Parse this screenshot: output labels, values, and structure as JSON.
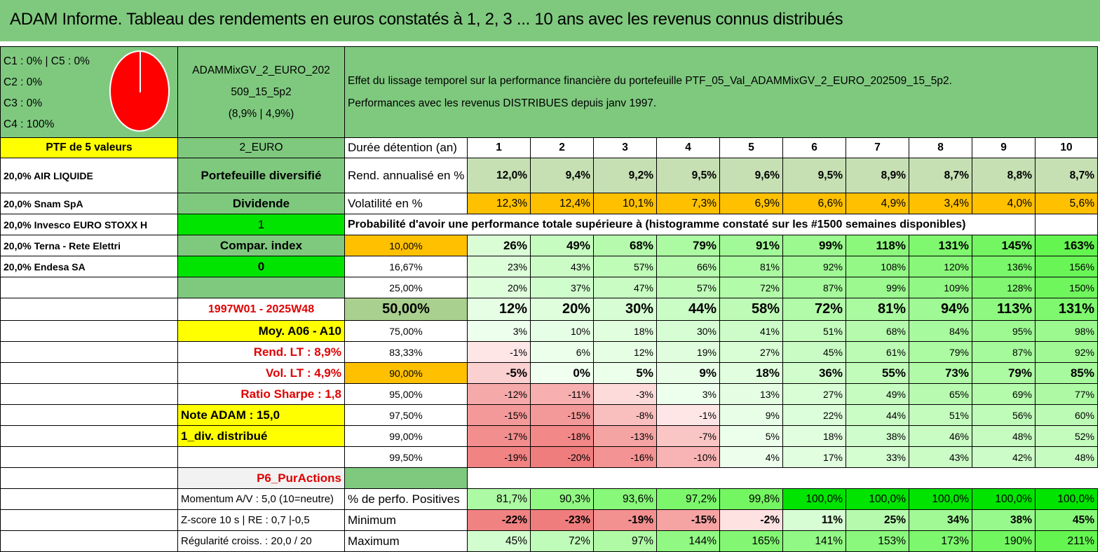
{
  "title": "ADAM Informe. Tableau des rendements en euros constatés à 1, 2, 3 ... 10 ans avec les revenus connus distribués",
  "allocation": {
    "lines": [
      "C1 : 0% | C5 : 0%",
      "C2 : 0%",
      "C3 : 0%",
      "C4 : 100%"
    ],
    "pie_color": "#ff0000"
  },
  "fund": {
    "name_line1": "ADAMMixGV_2_EURO_202",
    "name_line2": "509_15_5p2",
    "stats": "(8,9% | 4,9%)"
  },
  "description": {
    "line1": "Effet du lissage temporel sur la performance financière du portefeuille PTF_05_Val_ADAMMixGV_2_EURO_202509_15_5p2.",
    "line2": "Performances avec les revenus DISTRIBUES depuis janv 1997."
  },
  "left": {
    "ptf_header": "PTF de 5 valeurs",
    "holdings": [
      "20,0% AIR LIQUIDE",
      "20,0% Snam SpA",
      "20,0% Invesco EURO STOXX H",
      "20,0% Terna - Rete Elettri",
      "20,0% Endesa SA"
    ]
  },
  "mid": {
    "currency": "2_EURO",
    "type": "Portefeuille diversifié",
    "dividend_label": "Dividende",
    "dividend_value": "1",
    "compar_label": "Compar. index",
    "compar_value": "0",
    "period": "1997W01 - 2025W48",
    "moy": "Moy. A06 - A10",
    "rend_lt": "Rend. LT : 8,9%",
    "vol_lt": "Vol. LT : 4,9%",
    "sharpe": "Ratio Sharpe : 1,8",
    "note": "Note ADAM : 15,0",
    "div_dist": "1_div. distribué",
    "p6": "P6_PurActions",
    "momentum": "Momentum A/V : 5,0 (10=neutre)",
    "zscore": "Z-score 10 s | RE : 0,7 |-0,5",
    "regularite": "Régularité croiss. : 20,0 / 20"
  },
  "table": {
    "duration_label": "Durée détention (an)",
    "years": [
      "1",
      "2",
      "3",
      "4",
      "5",
      "6",
      "7",
      "8",
      "9",
      "10"
    ],
    "rend_label": "Rend. annualisé en %",
    "rend": [
      "12,0%",
      "9,4%",
      "9,2%",
      "9,5%",
      "9,6%",
      "9,5%",
      "8,9%",
      "8,7%",
      "8,8%",
      "8,7%"
    ],
    "vol_label": "Volatilité en %",
    "vol": [
      "12,3%",
      "12,4%",
      "10,1%",
      "7,3%",
      "6,9%",
      "6,6%",
      "4,9%",
      "3,4%",
      "4,0%",
      "5,6%"
    ],
    "prob_header": "Probabilité d'avoir une performance totale supérieure à (histogramme constaté sur les #1500 semaines disponibles)",
    "quantiles": [
      {
        "label": "10,00%",
        "values": [
          "26%",
          "49%",
          "68%",
          "79%",
          "91%",
          "99%",
          "118%",
          "131%",
          "145%",
          "163%"
        ]
      },
      {
        "label": "16,67%",
        "values": [
          "23%",
          "43%",
          "57%",
          "66%",
          "81%",
          "92%",
          "108%",
          "120%",
          "136%",
          "156%"
        ]
      },
      {
        "label": "25,00%",
        "values": [
          "20%",
          "37%",
          "47%",
          "57%",
          "72%",
          "87%",
          "99%",
          "109%",
          "128%",
          "150%"
        ]
      },
      {
        "label": "50,00%",
        "values": [
          "12%",
          "20%",
          "30%",
          "44%",
          "58%",
          "72%",
          "81%",
          "94%",
          "113%",
          "131%"
        ]
      },
      {
        "label": "75,00%",
        "values": [
          "3%",
          "10%",
          "18%",
          "30%",
          "41%",
          "51%",
          "68%",
          "84%",
          "95%",
          "98%"
        ]
      },
      {
        "label": "83,33%",
        "values": [
          "-1%",
          "6%",
          "12%",
          "19%",
          "27%",
          "45%",
          "61%",
          "79%",
          "87%",
          "92%"
        ]
      },
      {
        "label": "90,00%",
        "values": [
          "-5%",
          "0%",
          "5%",
          "9%",
          "18%",
          "36%",
          "55%",
          "73%",
          "79%",
          "85%"
        ]
      },
      {
        "label": "95,00%",
        "values": [
          "-12%",
          "-11%",
          "-3%",
          "3%",
          "13%",
          "27%",
          "49%",
          "65%",
          "69%",
          "77%"
        ]
      },
      {
        "label": "97,50%",
        "values": [
          "-15%",
          "-15%",
          "-8%",
          "-1%",
          "9%",
          "22%",
          "44%",
          "51%",
          "56%",
          "60%"
        ]
      },
      {
        "label": "99,00%",
        "values": [
          "-17%",
          "-18%",
          "-13%",
          "-7%",
          "5%",
          "18%",
          "38%",
          "46%",
          "48%",
          "52%"
        ]
      },
      {
        "label": "99,50%",
        "values": [
          "-19%",
          "-20%",
          "-16%",
          "-10%",
          "4%",
          "17%",
          "33%",
          "43%",
          "42%",
          "48%"
        ]
      }
    ],
    "pos_label": "% de perfo. Positives",
    "pos": [
      "81,7%",
      "90,3%",
      "93,6%",
      "97,2%",
      "99,8%",
      "100,0%",
      "100,0%",
      "100,0%",
      "100,0%",
      "100,0%"
    ],
    "min_label": "Minimum",
    "min": [
      "-22%",
      "-23%",
      "-19%",
      "-15%",
      "-2%",
      "11%",
      "25%",
      "34%",
      "38%",
      "45%"
    ],
    "max_label": "Maximum",
    "max": [
      "45%",
      "72%",
      "97%",
      "144%",
      "165%",
      "141%",
      "153%",
      "173%",
      "190%",
      "211%"
    ]
  },
  "colors": {
    "header_green": "#7fc97f",
    "bright_green": "#00e400",
    "yellow": "#ffff00",
    "orange": "#ffc000",
    "negative_red": "#f08080"
  }
}
